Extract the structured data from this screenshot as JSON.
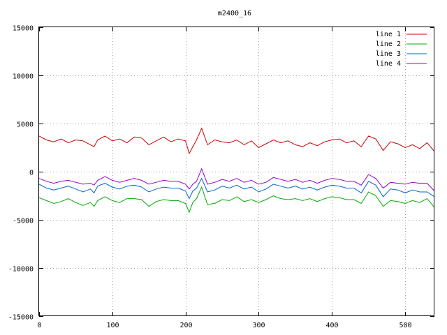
{
  "chart_data": {
    "type": "line",
    "title": "m2400_16",
    "xlabel": "",
    "ylabel": "",
    "xlim": [
      0,
      540
    ],
    "ylim": [
      -15000,
      15000
    ],
    "x_ticks": [
      "0",
      "100",
      "200",
      "300",
      "400",
      "500"
    ],
    "y_ticks": [
      "15000",
      "10000",
      "5000",
      "0",
      "-5000",
      "-10000",
      "-15000"
    ],
    "grid": true,
    "legend_position": "top-right",
    "x": [
      0,
      10,
      20,
      30,
      40,
      50,
      60,
      70,
      75,
      80,
      90,
      100,
      110,
      120,
      130,
      140,
      150,
      160,
      170,
      180,
      190,
      200,
      205,
      210,
      215,
      222,
      230,
      240,
      250,
      260,
      270,
      280,
      290,
      300,
      310,
      320,
      330,
      340,
      350,
      360,
      370,
      380,
      390,
      400,
      410,
      420,
      430,
      440,
      450,
      460,
      470,
      480,
      490,
      500,
      510,
      520,
      530,
      540
    ],
    "series": [
      {
        "name": "line 1",
        "color": "#cc0000",
        "values": [
          3700,
          3300,
          3100,
          3400,
          3000,
          3300,
          3200,
          2800,
          2600,
          3300,
          3700,
          3200,
          3400,
          3000,
          3600,
          3500,
          2800,
          3200,
          3600,
          3100,
          3400,
          3200,
          1900,
          2600,
          3300,
          4500,
          2800,
          3300,
          3100,
          3000,
          3300,
          2800,
          3200,
          2500,
          2900,
          3300,
          3000,
          3200,
          2800,
          2600,
          3000,
          2700,
          3100,
          3300,
          3400,
          3000,
          3200,
          2600,
          3700,
          3400,
          2200,
          3100,
          2900,
          2500,
          2800,
          2400,
          3000,
          2100
        ]
      },
      {
        "name": "line 2",
        "color": "#00aa00",
        "values": [
          -2700,
          -3000,
          -3300,
          -3100,
          -2800,
          -3200,
          -3500,
          -3200,
          -3600,
          -3000,
          -2600,
          -3000,
          -3200,
          -2800,
          -2800,
          -2900,
          -3600,
          -3100,
          -2900,
          -3000,
          -3000,
          -3300,
          -4200,
          -3200,
          -2800,
          -1600,
          -3400,
          -3300,
          -2900,
          -3000,
          -2600,
          -3100,
          -2900,
          -3200,
          -2900,
          -2500,
          -2800,
          -2900,
          -2800,
          -3000,
          -2800,
          -3100,
          -2800,
          -2600,
          -2700,
          -2900,
          -2900,
          -3300,
          -2100,
          -2500,
          -3600,
          -3000,
          -3100,
          -3300,
          -3000,
          -3200,
          -2800,
          -3700
        ]
      },
      {
        "name": "line 3",
        "color": "#0066cc",
        "values": [
          -1300,
          -1700,
          -1900,
          -1700,
          -1500,
          -1800,
          -2100,
          -1800,
          -2200,
          -1500,
          -1200,
          -1600,
          -1800,
          -1500,
          -1400,
          -1600,
          -2100,
          -1800,
          -1600,
          -1700,
          -1700,
          -2000,
          -2800,
          -2000,
          -1700,
          -700,
          -2100,
          -1900,
          -1500,
          -1700,
          -1400,
          -1800,
          -1600,
          -2100,
          -1800,
          -1300,
          -1500,
          -1700,
          -1500,
          -1800,
          -1600,
          -1900,
          -1600,
          -1400,
          -1500,
          -1700,
          -1700,
          -2200,
          -1000,
          -1400,
          -2600,
          -1800,
          -1900,
          -2200,
          -1900,
          -2100,
          -2100,
          -2600
        ]
      },
      {
        "name": "line 4",
        "color": "#9900cc",
        "values": [
          -700,
          -1000,
          -1200,
          -1000,
          -900,
          -1100,
          -1300,
          -1200,
          -1400,
          -900,
          -500,
          -900,
          -1100,
          -900,
          -700,
          -900,
          -1300,
          -1100,
          -900,
          -1000,
          -1000,
          -1300,
          -1800,
          -1300,
          -1000,
          300,
          -1300,
          -1100,
          -800,
          -1000,
          -700,
          -1100,
          -900,
          -1300,
          -1100,
          -600,
          -800,
          -1000,
          -800,
          -1100,
          -900,
          -1200,
          -900,
          -700,
          -800,
          -1000,
          -1000,
          -1400,
          -300,
          -700,
          -1700,
          -1100,
          -1200,
          -1300,
          -1100,
          -1200,
          -1200,
          -2000
        ]
      }
    ]
  }
}
